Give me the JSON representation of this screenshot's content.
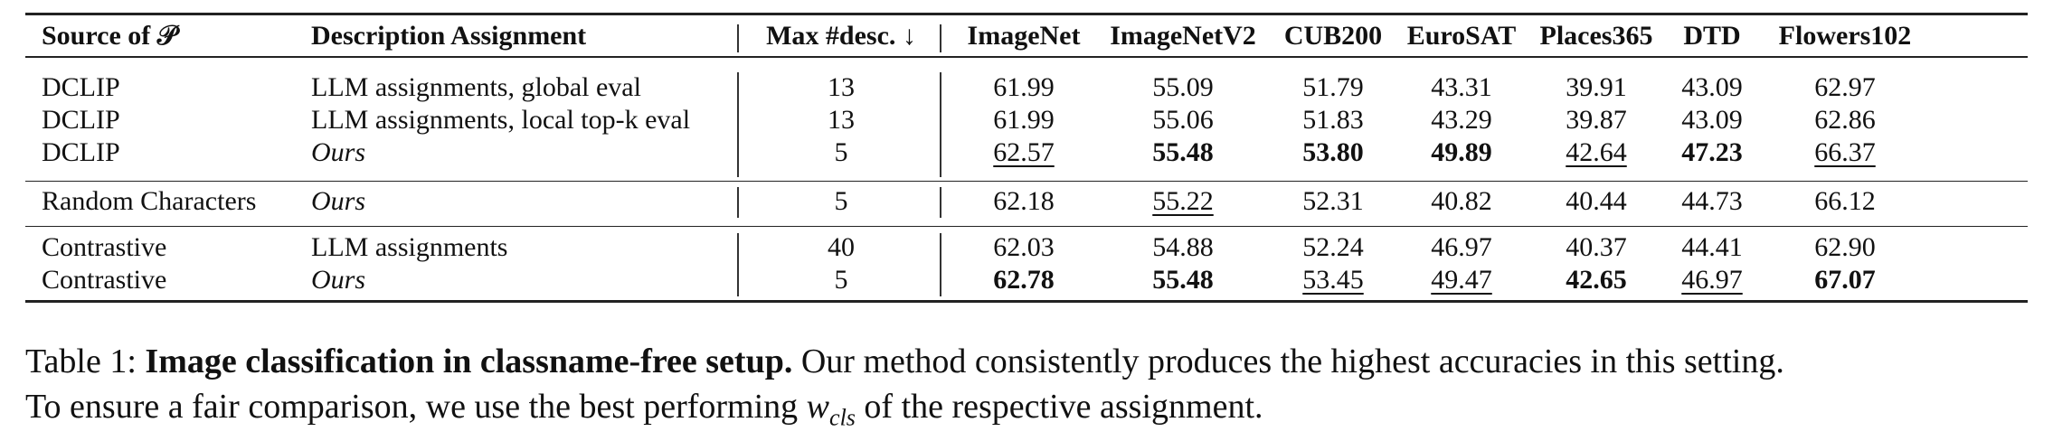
{
  "table": {
    "headers": {
      "source": "Source of 𝒫",
      "assignment": "Description Assignment",
      "maxdesc": "Max #desc. ↓",
      "imagenet": "ImageNet",
      "imagenetv2": "ImageNetV2",
      "cub200": "CUB200",
      "eurosat": "EuroSAT",
      "places365": "Places365",
      "dtd": "DTD",
      "flowers102": "Flowers102"
    },
    "rows": [
      {
        "source": "DCLIP",
        "assignment": "LLM assignments, global eval",
        "maxdesc": "13",
        "imagenet": "61.99",
        "imagenetv2": "55.09",
        "cub200": "51.79",
        "eurosat": "43.31",
        "places365": "39.91",
        "dtd": "43.09",
        "flowers102": "62.97"
      },
      {
        "source": "DCLIP",
        "assignment": "LLM assignments, local top-k eval",
        "maxdesc": "13",
        "imagenet": "61.99",
        "imagenetv2": "55.06",
        "cub200": "51.83",
        "eurosat": "43.29",
        "places365": "39.87",
        "dtd": "43.09",
        "flowers102": "62.86"
      },
      {
        "source": "DCLIP",
        "assignment": "Ours",
        "maxdesc": "5",
        "imagenet": "62.57",
        "imagenetv2": "55.48",
        "cub200": "53.80",
        "eurosat": "49.89",
        "places365": "42.64",
        "dtd": "47.23",
        "flowers102": "66.37"
      },
      {
        "source": "Random Characters",
        "assignment": "Ours",
        "maxdesc": "5",
        "imagenet": "62.18",
        "imagenetv2": "55.22",
        "cub200": "52.31",
        "eurosat": "40.82",
        "places365": "40.44",
        "dtd": "44.73",
        "flowers102": "66.12"
      },
      {
        "source": "Contrastive",
        "assignment": "LLM assignments",
        "maxdesc": "40",
        "imagenet": "62.03",
        "imagenetv2": "54.88",
        "cub200": "52.24",
        "eurosat": "46.97",
        "places365": "40.37",
        "dtd": "44.41",
        "flowers102": "62.90"
      },
      {
        "source": "Contrastive",
        "assignment": "Ours",
        "maxdesc": "5",
        "imagenet": "62.78",
        "imagenetv2": "55.48",
        "cub200": "53.45",
        "eurosat": "49.47",
        "places365": "42.65",
        "dtd": "46.97",
        "flowers102": "67.07"
      }
    ]
  },
  "caption": {
    "prefix": "Table 1: ",
    "title": "Image classification in classname-free setup.",
    "body1": " Our method consistently produces the highest accuracies in this setting.",
    "body2": "To ensure a fair comparison, we use the best performing ",
    "math_var": "w",
    "math_sub": "cls",
    "body3": " of the respective assignment."
  }
}
